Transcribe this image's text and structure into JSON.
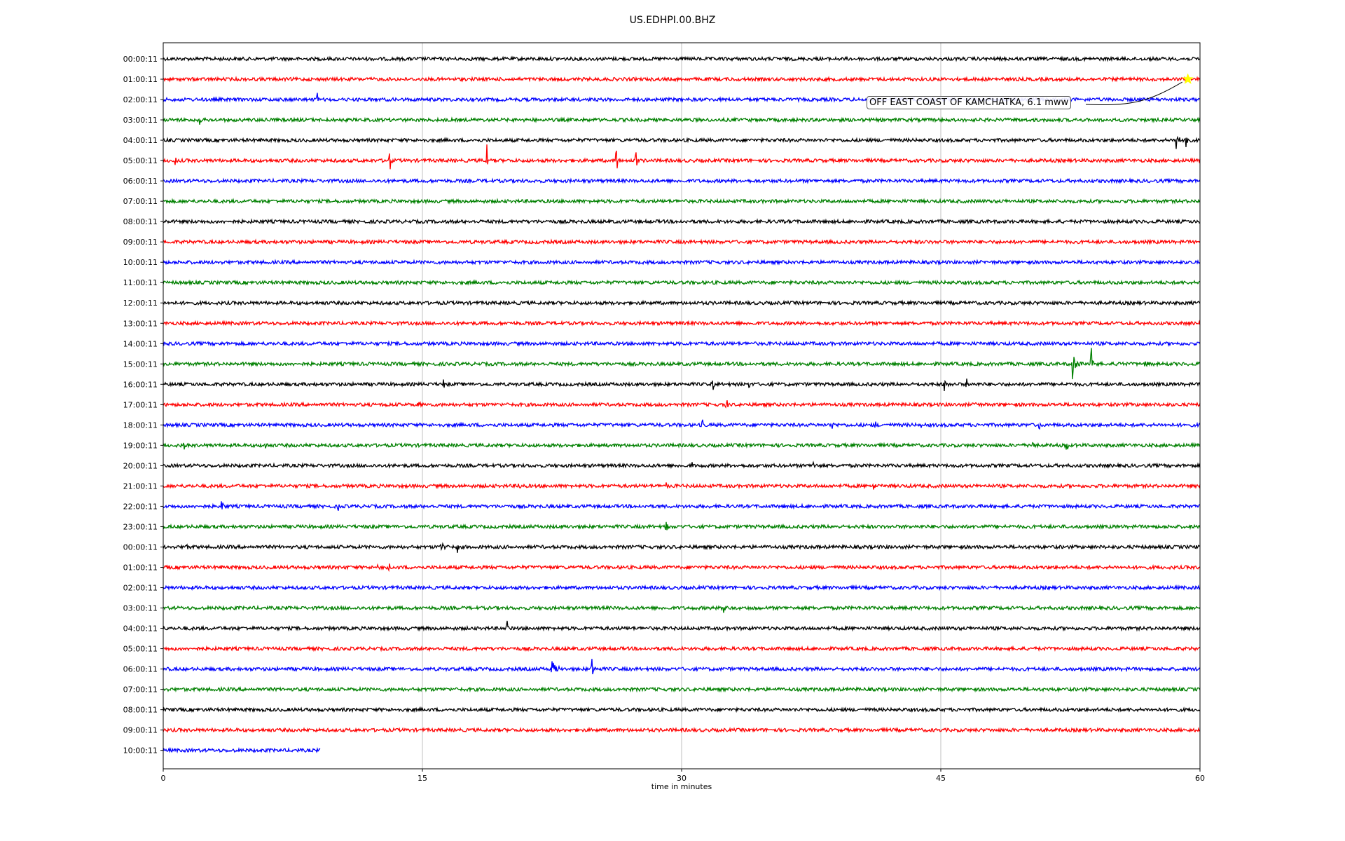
{
  "chart_data": {
    "type": "line",
    "title": "US.EDHPI.00.BHZ",
    "xlabel": "time in minutes",
    "ylabel": "",
    "xlim": [
      0,
      60
    ],
    "x_ticks": [
      "0",
      "15",
      "30",
      "45",
      "60"
    ],
    "x_tick_values": [
      0,
      15,
      30,
      45,
      60
    ],
    "grid": "vertical",
    "line_colors": [
      "#000000",
      "#ff0000",
      "#0000ff",
      "#008000"
    ],
    "rows": [
      {
        "label": "00:00:11",
        "end": 60,
        "events": []
      },
      {
        "label": "01:00:11",
        "end": 60,
        "events": []
      },
      {
        "label": "02:00:11",
        "end": 60,
        "events": [
          [
            8.9,
            9,
            1.2
          ]
        ]
      },
      {
        "label": "03:00:11",
        "end": 60,
        "events": [
          [
            2.1,
            7,
            0.8
          ],
          [
            5.9,
            5,
            0.9
          ]
        ]
      },
      {
        "label": "04:00:11",
        "end": 60,
        "events": [
          [
            58.6,
            10,
            3.0
          ],
          [
            59.2,
            6,
            5.0
          ]
        ]
      },
      {
        "label": "05:00:11",
        "end": 60,
        "events": [
          [
            0.7,
            2,
            1.2
          ],
          [
            13.1,
            6,
            3.0
          ],
          [
            18.7,
            6,
            4.0
          ],
          [
            26.2,
            5,
            6.0
          ],
          [
            27.3,
            6,
            5.0
          ]
        ]
      },
      {
        "label": "06:00:11",
        "end": 60,
        "events": []
      },
      {
        "label": "07:00:11",
        "end": 60,
        "events": []
      },
      {
        "label": "08:00:11",
        "end": 60,
        "events": []
      },
      {
        "label": "09:00:11",
        "end": 60,
        "events": []
      },
      {
        "label": "10:00:11",
        "end": 60,
        "events": []
      },
      {
        "label": "11:00:11",
        "end": 60,
        "events": []
      },
      {
        "label": "12:00:11",
        "end": 60,
        "events": []
      },
      {
        "label": "13:00:11",
        "end": 60,
        "events": []
      },
      {
        "label": "14:00:11",
        "end": 60,
        "events": []
      },
      {
        "label": "15:00:11",
        "end": 60,
        "events": [
          [
            52.6,
            20,
            2.0
          ],
          [
            53.7,
            8,
            3.2
          ],
          [
            55.3,
            8,
            1.0
          ],
          [
            56.8,
            6,
            1.8
          ]
        ]
      },
      {
        "label": "16:00:11",
        "end": 60,
        "events": [
          [
            16.2,
            6,
            0.9
          ],
          [
            31.8,
            7,
            0.8
          ],
          [
            33.9,
            5,
            1.0
          ],
          [
            45.2,
            8,
            0.9
          ],
          [
            46.5,
            3,
            0.8
          ]
        ]
      },
      {
        "label": "17:00:11",
        "end": 60,
        "events": [
          [
            12.9,
            4,
            0.7
          ],
          [
            14.8,
            5,
            0.6
          ],
          [
            32.6,
            4,
            1.6
          ],
          [
            47.0,
            3,
            0.6
          ]
        ]
      },
      {
        "label": "18:00:11",
        "end": 60,
        "events": [
          [
            31.2,
            4,
            0.7
          ],
          [
            38.7,
            5,
            0.9
          ],
          [
            41.2,
            4,
            0.9
          ],
          [
            43.9,
            3,
            0.8
          ],
          [
            50.7,
            4,
            0.8
          ]
        ]
      },
      {
        "label": "19:00:11",
        "end": 60,
        "events": [
          [
            1.2,
            4,
            0.9
          ],
          [
            5.9,
            5,
            0.7
          ],
          [
            25.6,
            3,
            0.6
          ],
          [
            50.3,
            6,
            0.8
          ],
          [
            52.3,
            4,
            1.0
          ]
        ]
      },
      {
        "label": "20:00:11",
        "end": 60,
        "events": [
          [
            30.6,
            8,
            0.6
          ],
          [
            37.6,
            6,
            0.6
          ]
        ]
      },
      {
        "label": "21:00:11",
        "end": 60,
        "events": [
          [
            20.6,
            6,
            0.8
          ],
          [
            29.1,
            5,
            0.5
          ],
          [
            41.1,
            4,
            1.2
          ]
        ]
      },
      {
        "label": "22:00:11",
        "end": 60,
        "events": [
          [
            3.4,
            5,
            1.2
          ],
          [
            10.1,
            5,
            0.8
          ]
        ]
      },
      {
        "label": "23:00:11",
        "end": 60,
        "events": [
          [
            29.1,
            6,
            0.8
          ]
        ]
      },
      {
        "label": "00:00:11",
        "end": 60,
        "events": [
          [
            1.3,
            8,
            0.7
          ],
          [
            16.1,
            10,
            1.2
          ],
          [
            17.0,
            6,
            1.0
          ]
        ]
      },
      {
        "label": "01:00:11",
        "end": 60,
        "events": [
          [
            10.4,
            5,
            0.7
          ],
          [
            12.4,
            5,
            0.6
          ],
          [
            13.1,
            3,
            1.4
          ]
        ]
      },
      {
        "label": "02:00:11",
        "end": 60,
        "events": []
      },
      {
        "label": "03:00:11",
        "end": 60,
        "events": [
          [
            32.4,
            12,
            1.2
          ],
          [
            34.3,
            6,
            0.9
          ]
        ]
      },
      {
        "label": "04:00:11",
        "end": 60,
        "events": [
          [
            19.9,
            5,
            1.5
          ]
        ]
      },
      {
        "label": "05:00:11",
        "end": 60,
        "events": []
      },
      {
        "label": "06:00:11",
        "end": 60,
        "events": [
          [
            22.5,
            25,
            0.9
          ],
          [
            24.8,
            8,
            1.5
          ]
        ]
      },
      {
        "label": "07:00:11",
        "end": 60,
        "events": []
      },
      {
        "label": "08:00:11",
        "end": 60,
        "events": []
      },
      {
        "label": "09:00:11",
        "end": 60,
        "events": []
      },
      {
        "label": "10:00:11",
        "end": 9.1,
        "events": []
      }
    ],
    "annotation": {
      "text": "OFF EAST COAST OF KAMCHATKA, 6.1 mww",
      "row": 1,
      "x": 59.3,
      "marker_color": "#ffff00"
    }
  }
}
